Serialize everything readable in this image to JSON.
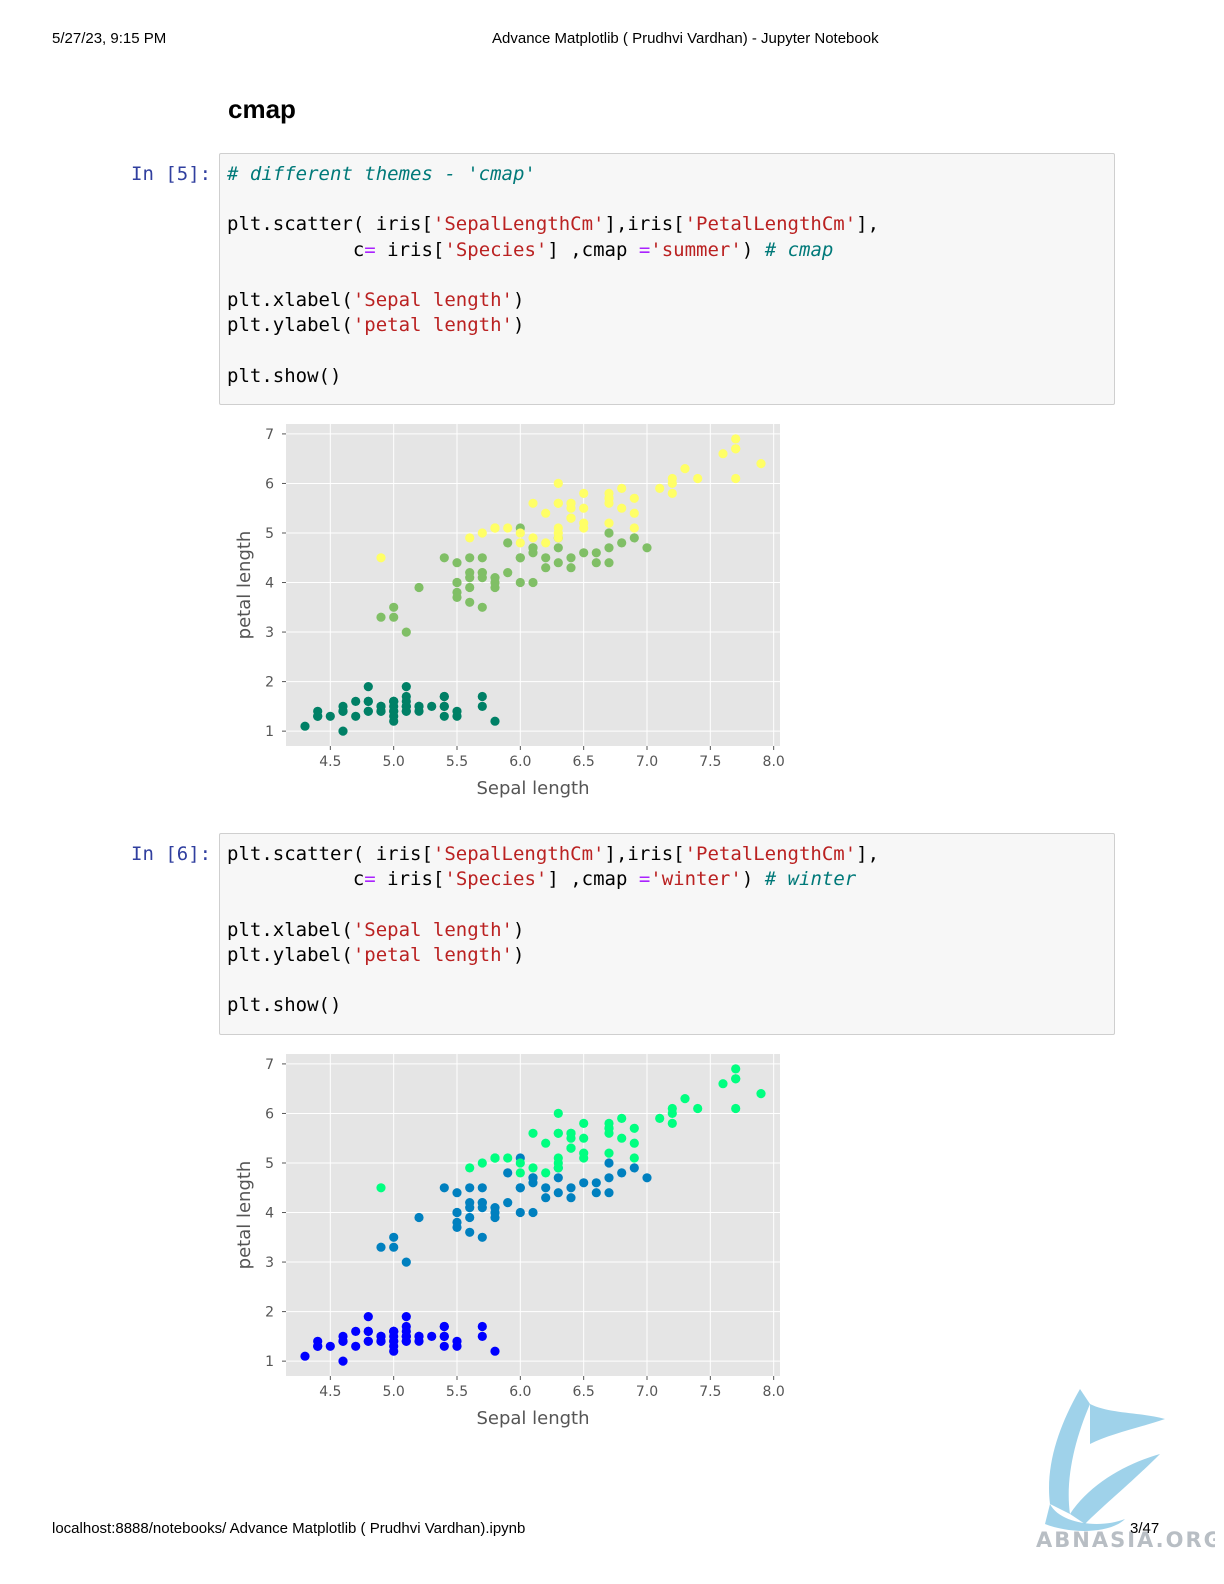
{
  "header": {
    "datetime": "5/27/23, 9:15 PM",
    "title": "Advance Matplotlib ( Prudhvi Vardhan) - Jupyter Notebook"
  },
  "heading": "cmap",
  "cells": [
    {
      "prompt": "In [5]:"
    },
    {
      "prompt": "In [6]:"
    }
  ],
  "footer": {
    "url": "localhost:8888/notebooks/ Advance Matplotlib ( Prudhvi Vardhan).ipynb",
    "page": "3/47"
  },
  "watermark": {
    "text": "ABNASIA.ORG"
  },
  "colors": {
    "summer": [
      "#008066",
      "#80bf66",
      "#ffff66"
    ],
    "winter": [
      "#0000ff",
      "#0080bf",
      "#00ff80"
    ],
    "plot_bg": "#e5e5e5",
    "prompt": "#303f9f"
  },
  "chart_data": [
    {
      "type": "scatter",
      "xlabel": "Sepal length",
      "ylabel": "petal length",
      "xlim": [
        4.15,
        8.05
      ],
      "ylim": [
        0.7,
        7.2
      ],
      "xticks": [
        "4.5",
        "5.0",
        "5.5",
        "6.0",
        "6.5",
        "7.0",
        "7.5",
        "8.0"
      ],
      "yticks": [
        "1",
        "2",
        "3",
        "4",
        "5",
        "6",
        "7"
      ],
      "grid": true,
      "cmap": "summer",
      "series": [
        {
          "values": [
            [
              5.1,
              1.4
            ],
            [
              4.9,
              1.4
            ],
            [
              4.7,
              1.3
            ],
            [
              4.6,
              1.5
            ],
            [
              5.0,
              1.4
            ],
            [
              5.4,
              1.7
            ],
            [
              4.6,
              1.4
            ],
            [
              5.0,
              1.5
            ],
            [
              4.4,
              1.4
            ],
            [
              4.9,
              1.5
            ],
            [
              5.4,
              1.5
            ],
            [
              4.8,
              1.6
            ],
            [
              4.8,
              1.4
            ],
            [
              4.3,
              1.1
            ],
            [
              5.8,
              1.2
            ],
            [
              5.7,
              1.5
            ],
            [
              5.4,
              1.3
            ],
            [
              5.1,
              1.4
            ],
            [
              5.7,
              1.7
            ],
            [
              5.1,
              1.5
            ],
            [
              5.4,
              1.7
            ],
            [
              5.1,
              1.5
            ],
            [
              4.6,
              1.0
            ],
            [
              5.1,
              1.7
            ],
            [
              4.8,
              1.9
            ],
            [
              5.0,
              1.6
            ],
            [
              5.0,
              1.6
            ],
            [
              5.2,
              1.5
            ],
            [
              5.2,
              1.4
            ],
            [
              4.7,
              1.6
            ],
            [
              4.8,
              1.6
            ],
            [
              5.4,
              1.5
            ],
            [
              5.2,
              1.5
            ],
            [
              5.5,
              1.4
            ],
            [
              4.9,
              1.5
            ],
            [
              5.0,
              1.2
            ],
            [
              5.5,
              1.3
            ],
            [
              4.9,
              1.4
            ],
            [
              4.4,
              1.3
            ],
            [
              5.1,
              1.5
            ],
            [
              5.0,
              1.3
            ],
            [
              4.5,
              1.3
            ],
            [
              4.4,
              1.3
            ],
            [
              5.0,
              1.6
            ],
            [
              5.1,
              1.9
            ],
            [
              4.8,
              1.4
            ],
            [
              5.1,
              1.6
            ],
            [
              4.6,
              1.4
            ],
            [
              5.3,
              1.5
            ],
            [
              5.0,
              1.4
            ]
          ]
        },
        {
          "values": [
            [
              7.0,
              4.7
            ],
            [
              6.4,
              4.5
            ],
            [
              6.9,
              4.9
            ],
            [
              5.5,
              4.0
            ],
            [
              6.5,
              4.6
            ],
            [
              5.7,
              4.5
            ],
            [
              6.3,
              4.7
            ],
            [
              4.9,
              3.3
            ],
            [
              6.6,
              4.6
            ],
            [
              5.2,
              3.9
            ],
            [
              5.0,
              3.5
            ],
            [
              5.9,
              4.2
            ],
            [
              6.0,
              4.0
            ],
            [
              6.1,
              4.7
            ],
            [
              5.6,
              3.6
            ],
            [
              6.7,
              4.4
            ],
            [
              5.6,
              4.5
            ],
            [
              5.8,
              4.1
            ],
            [
              6.2,
              4.5
            ],
            [
              5.6,
              3.9
            ],
            [
              5.9,
              4.8
            ],
            [
              6.1,
              4.0
            ],
            [
              6.3,
              4.9
            ],
            [
              6.1,
              4.7
            ],
            [
              6.4,
              4.3
            ],
            [
              6.6,
              4.4
            ],
            [
              6.8,
              4.8
            ],
            [
              6.7,
              5.0
            ],
            [
              6.0,
              4.5
            ],
            [
              5.7,
              3.5
            ],
            [
              5.5,
              3.8
            ],
            [
              5.5,
              3.7
            ],
            [
              5.8,
              3.9
            ],
            [
              6.0,
              5.1
            ],
            [
              5.4,
              4.5
            ],
            [
              6.0,
              4.5
            ],
            [
              6.7,
              4.7
            ],
            [
              6.3,
              4.4
            ],
            [
              5.6,
              4.1
            ],
            [
              5.5,
              4.0
            ],
            [
              5.5,
              4.4
            ],
            [
              6.1,
              4.6
            ],
            [
              5.8,
              4.0
            ],
            [
              5.0,
              3.3
            ],
            [
              5.6,
              4.2
            ],
            [
              5.7,
              4.2
            ],
            [
              5.7,
              4.2
            ],
            [
              6.2,
              4.3
            ],
            [
              5.1,
              3.0
            ],
            [
              5.7,
              4.1
            ]
          ]
        },
        {
          "values": [
            [
              6.3,
              6.0
            ],
            [
              5.8,
              5.1
            ],
            [
              7.1,
              5.9
            ],
            [
              6.3,
              5.6
            ],
            [
              6.5,
              5.8
            ],
            [
              7.6,
              6.6
            ],
            [
              4.9,
              4.5
            ],
            [
              7.3,
              6.3
            ],
            [
              6.7,
              5.8
            ],
            [
              7.2,
              6.1
            ],
            [
              6.5,
              5.1
            ],
            [
              6.4,
              5.3
            ],
            [
              6.8,
              5.5
            ],
            [
              5.7,
              5.0
            ],
            [
              5.8,
              5.1
            ],
            [
              6.4,
              5.3
            ],
            [
              6.5,
              5.5
            ],
            [
              7.7,
              6.7
            ],
            [
              7.7,
              6.9
            ],
            [
              6.0,
              5.0
            ],
            [
              6.9,
              5.7
            ],
            [
              5.6,
              4.9
            ],
            [
              7.7,
              6.7
            ],
            [
              6.3,
              4.9
            ],
            [
              6.7,
              5.7
            ],
            [
              7.2,
              6.0
            ],
            [
              6.2,
              4.8
            ],
            [
              6.1,
              4.9
            ],
            [
              6.4,
              5.6
            ],
            [
              7.2,
              5.8
            ],
            [
              7.4,
              6.1
            ],
            [
              7.9,
              6.4
            ],
            [
              6.4,
              5.6
            ],
            [
              6.3,
              5.1
            ],
            [
              6.1,
              5.6
            ],
            [
              7.7,
              6.1
            ],
            [
              6.3,
              5.6
            ],
            [
              6.4,
              5.5
            ],
            [
              6.0,
              4.8
            ],
            [
              6.9,
              5.4
            ],
            [
              6.7,
              5.6
            ],
            [
              6.9,
              5.1
            ],
            [
              5.8,
              5.1
            ],
            [
              6.8,
              5.9
            ],
            [
              6.7,
              5.7
            ],
            [
              6.7,
              5.2
            ],
            [
              6.3,
              5.0
            ],
            [
              6.5,
              5.2
            ],
            [
              6.2,
              5.4
            ],
            [
              5.9,
              5.1
            ]
          ]
        }
      ]
    },
    {
      "type": "scatter",
      "xlabel": "Sepal length",
      "ylabel": "petal length",
      "xlim": [
        4.15,
        8.05
      ],
      "ylim": [
        0.7,
        7.2
      ],
      "xticks": [
        "4.5",
        "5.0",
        "5.5",
        "6.0",
        "6.5",
        "7.0",
        "7.5",
        "8.0"
      ],
      "yticks": [
        "1",
        "2",
        "3",
        "4",
        "5",
        "6",
        "7"
      ],
      "grid": true,
      "cmap": "winter",
      "series_ref": 0
    }
  ]
}
